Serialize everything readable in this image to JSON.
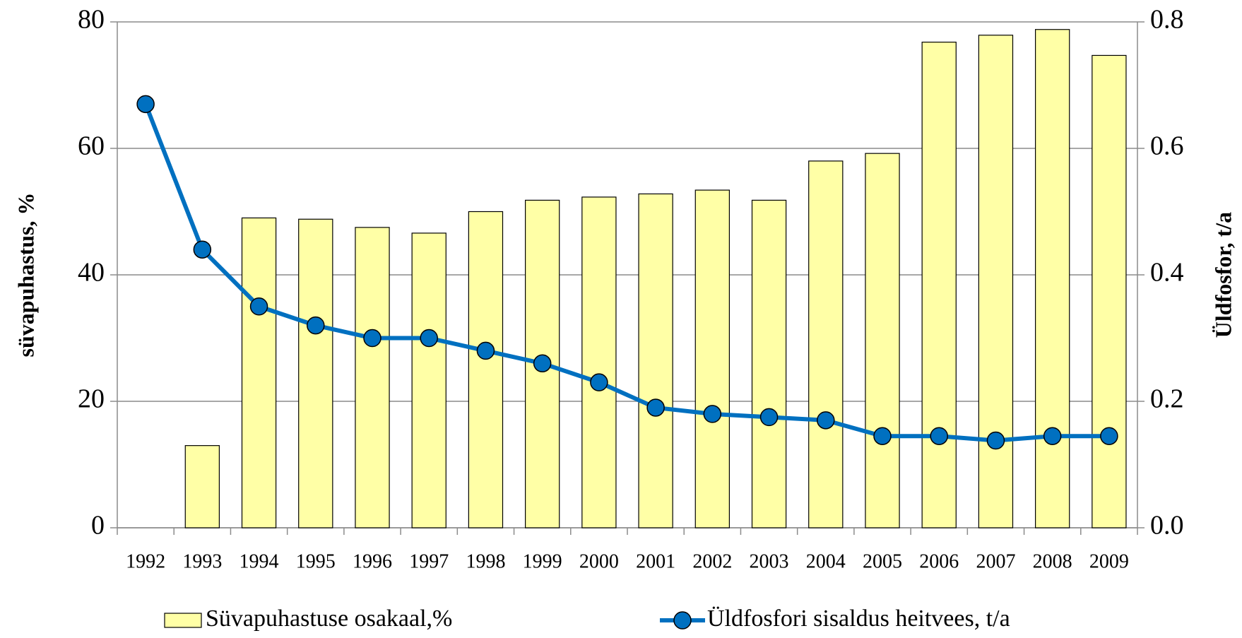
{
  "chart_data": {
    "type": "combo",
    "categories": [
      "1992",
      "1993",
      "1994",
      "1995",
      "1996",
      "1997",
      "1998",
      "1999",
      "2000",
      "2001",
      "2002",
      "2003",
      "2004",
      "2005",
      "2006",
      "2007",
      "2008",
      "2009"
    ],
    "series": [
      {
        "name": "Süvapuhastuse osakaal,%",
        "type": "bar",
        "color": "#ffffa6",
        "values": [
          null,
          13,
          49,
          48.8,
          47.5,
          46.6,
          50,
          51.8,
          52.3,
          52.8,
          53.4,
          51.8,
          58,
          59.2,
          76.8,
          77.9,
          78.8,
          74.7
        ]
      },
      {
        "name": "Üldfosfori sisaldus heitvees, t/a",
        "type": "line",
        "axis": "y2",
        "color": "#0070c0",
        "values": [
          0.67,
          0.44,
          0.35,
          0.32,
          0.3,
          0.3,
          0.28,
          0.26,
          0.23,
          0.19,
          0.18,
          0.175,
          0.17,
          0.145,
          0.145,
          0.138,
          0.145,
          0.145
        ]
      }
    ],
    "y_label": "süvapuhastus, %",
    "y2_label": "Üldfosfor, t/a",
    "ylim": [
      0,
      80
    ],
    "yticks": [
      0,
      20,
      40,
      60,
      80
    ],
    "y2lim": [
      0,
      0.8
    ],
    "y2ticks": [
      {
        "value": 0,
        "label": "0.0"
      },
      0.2,
      0.4,
      0.6,
      0.8
    ],
    "grid": true
  }
}
